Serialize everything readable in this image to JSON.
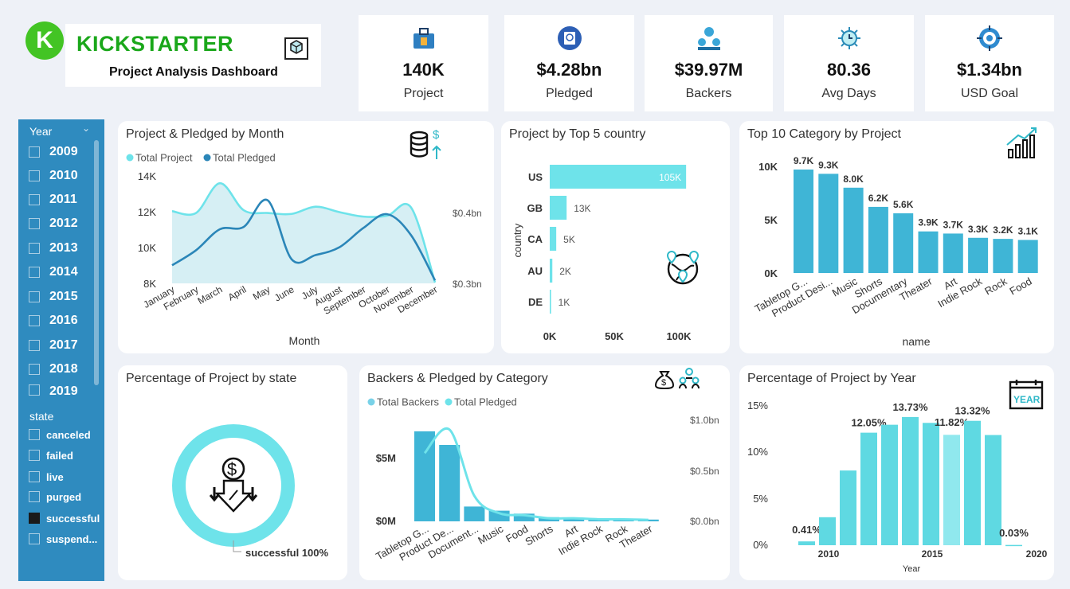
{
  "header": {
    "brand": "KICKSTARTER",
    "subtitle": "Project Analysis Dashboard",
    "logo_letter": "K",
    "logo_icon": "kickstarter-logo",
    "map_icon": "map-icon"
  },
  "kpis": [
    {
      "value": "140K",
      "label": "Project",
      "icon": "briefcase-icon"
    },
    {
      "value": "$4.28bn",
      "label": "Pledged",
      "icon": "passport-icon"
    },
    {
      "value": "$39.97M",
      "label": "Backers",
      "icon": "people-icon"
    },
    {
      "value": "80.36",
      "label": "Avg Days",
      "icon": "sun-clock-icon"
    },
    {
      "value": "$1.34bn",
      "label": "USD Goal",
      "icon": "target-dollar-icon"
    }
  ],
  "slicer": {
    "year_title": "Year",
    "years": [
      "2009",
      "2010",
      "2011",
      "2012",
      "2013",
      "2014",
      "2015",
      "2016",
      "2017",
      "2018",
      "2019"
    ],
    "state_title": "state",
    "states": [
      {
        "label": "canceled",
        "checked": false
      },
      {
        "label": "failed",
        "checked": false
      },
      {
        "label": "live",
        "checked": false
      },
      {
        "label": "purged",
        "checked": false
      },
      {
        "label": "successful",
        "checked": true
      },
      {
        "label": "suspend...",
        "checked": false
      }
    ]
  },
  "colors": {
    "light": "#6ee3ea",
    "dark": "#2b86b8",
    "bar": "#3fb5d6",
    "teal": "#5fd9e2",
    "slicer": "#2f8bbf"
  },
  "chart_data": [
    {
      "id": "month",
      "type": "area",
      "title": "Project & Pledged by Month",
      "xlabel": "Month",
      "categories": [
        "January",
        "February",
        "March",
        "April",
        "May",
        "June",
        "July",
        "August",
        "September",
        "October",
        "November",
        "December"
      ],
      "y_ticks": [
        "14K",
        "12K",
        "10K",
        "8K"
      ],
      "y2_ticks": [
        "$0.4bn",
        "$0.3bn"
      ],
      "ylim": [
        8000,
        14000
      ],
      "y2lim": [
        0.28,
        0.46
      ],
      "series": [
        {
          "name": "Total Project",
          "values": [
            12000,
            11900,
            13550,
            12050,
            11900,
            11850,
            12250,
            11950,
            11700,
            11750,
            12200,
            8050
          ]
        },
        {
          "name": "Total Pledged",
          "values": [
            0.31,
            0.335,
            0.37,
            0.374,
            0.418,
            0.32,
            0.327,
            0.34,
            0.372,
            0.395,
            0.36,
            0.285
          ]
        }
      ]
    },
    {
      "id": "country",
      "type": "bar",
      "title": "Project by Top 5 country",
      "ylabel": "country",
      "categories": [
        "US",
        "GB",
        "CA",
        "AU",
        "DE"
      ],
      "values": [
        105000,
        13000,
        5000,
        2000,
        1000
      ],
      "data_labels": [
        "105K",
        "13K",
        "5K",
        "2K",
        "1K"
      ],
      "x_ticks": [
        "0K",
        "50K",
        "100K"
      ],
      "xlim": [
        0,
        100000
      ]
    },
    {
      "id": "category",
      "type": "bar",
      "title": "Top 10 Category by Project",
      "xlabel": "name",
      "categories": [
        "Tabletop G...",
        "Product Desi...",
        "Music",
        "Shorts",
        "Documentary",
        "Theater",
        "Art",
        "Indie Rock",
        "Rock",
        "Food"
      ],
      "values": [
        9700,
        9300,
        8000,
        6200,
        5600,
        3900,
        3700,
        3300,
        3200,
        3100
      ],
      "data_labels": [
        "9.7K",
        "9.3K",
        "8.0K",
        "6.2K",
        "5.6K",
        "3.9K",
        "3.7K",
        "3.3K",
        "3.2K",
        "3.1K"
      ],
      "y_ticks": [
        "10K",
        "5K",
        "0K"
      ],
      "ylim": [
        0,
        10000
      ]
    },
    {
      "id": "state",
      "type": "pie",
      "title": "Percentage of Project by state",
      "categories": [
        "successful"
      ],
      "values": [
        100
      ],
      "data_labels": [
        "successful 100%"
      ]
    },
    {
      "id": "backers",
      "type": "bar",
      "title": "Backers & Pledged by Category",
      "categories": [
        "Tabletop G...",
        "Product De...",
        "Document...",
        "Music",
        "Food",
        "Shorts",
        "Art",
        "Indie Rock",
        "Rock",
        "Theater"
      ],
      "y_ticks": [
        "$5M",
        "$0M"
      ],
      "y2_ticks": [
        "$1.0bn",
        "$0.5bn",
        "$0.0bn"
      ],
      "ylim": [
        0,
        8600000
      ],
      "y2lim": [
        0,
        1.0
      ],
      "series": [
        {
          "name": "Total Backers",
          "values": [
            7600000,
            6450000,
            1250000,
            900000,
            650000,
            350000,
            250000,
            200000,
            170000,
            150000
          ]
        },
        {
          "name": "Total Pledged",
          "values": [
            0.67,
            0.9,
            0.25,
            0.08,
            0.06,
            0.03,
            0.03,
            0.02,
            0.02,
            0.015
          ]
        }
      ]
    },
    {
      "id": "year",
      "type": "bar",
      "title": "Percentage of Project by Year",
      "xlabel": "Year",
      "categories": [
        "2009",
        "2010",
        "2011",
        "2012",
        "2013",
        "2014",
        "2015",
        "2016",
        "2017",
        "2018",
        "2019"
      ],
      "values": [
        0.41,
        3.0,
        8.0,
        12.05,
        12.9,
        13.73,
        13.1,
        11.82,
        13.32,
        11.8,
        0.03
      ],
      "data_labels": [
        "0.41%",
        "",
        "",
        "12.05%",
        "",
        "13.73%",
        "",
        "11.82%",
        "13.32%",
        "",
        "0.03%"
      ],
      "y_ticks": [
        "15%",
        "10%",
        "5%",
        "0%"
      ],
      "x_ticks": [
        "2010",
        "2015",
        "2020"
      ],
      "ylim": [
        0,
        15
      ]
    }
  ]
}
